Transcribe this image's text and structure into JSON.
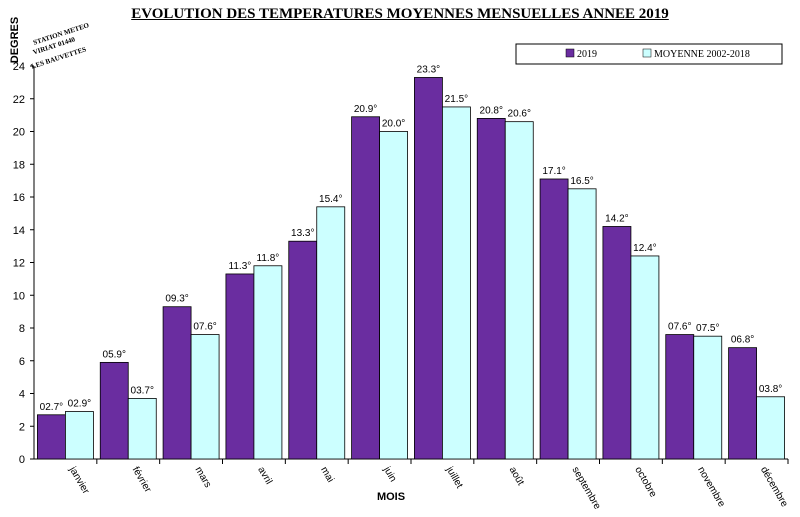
{
  "stamp": {
    "line1": "STATION METEO",
    "line2": "VIRIAT 01440",
    "line3": "LES BAUVETTES"
  },
  "chart_data": {
    "type": "bar",
    "title": "EVOLUTION DES TEMPERATURES MOYENNES MENSUELLES ANNEE 2019",
    "xlabel": "MOIS",
    "ylabel": "DEGRES",
    "ylim": [
      0,
      24
    ],
    "yticks": [
      0,
      2,
      4,
      6,
      8,
      10,
      12,
      14,
      16,
      18,
      20,
      22,
      24
    ],
    "grid": false,
    "legend_position": "top-right",
    "categories": [
      "janvier",
      "février",
      "mars",
      "avril",
      "mai",
      "juin",
      "juillet",
      "août",
      "septembre",
      "octobre",
      "novembre",
      "décembre"
    ],
    "series": [
      {
        "name": "2019",
        "color": "#6a2da0",
        "values": [
          2.7,
          5.9,
          9.3,
          11.3,
          13.3,
          20.9,
          23.3,
          20.8,
          17.1,
          14.2,
          7.6,
          6.8
        ],
        "labels": [
          "02.7°",
          "05.9°",
          "09.3°",
          "11.3°",
          "13.3°",
          "20.9°",
          "23.3°",
          "20.8°",
          "17.1°",
          "14.2°",
          "07.6°",
          "06.8°"
        ]
      },
      {
        "name": "MOYENNE 2002-2018",
        "color": "#ccffff",
        "values": [
          2.9,
          3.7,
          7.6,
          11.8,
          15.4,
          20.0,
          21.5,
          20.6,
          16.5,
          12.4,
          7.5,
          3.8
        ],
        "labels": [
          "02.9°",
          "03.7°",
          "07.6°",
          "11.8°",
          "15.4°",
          "20.0°",
          "21.5°",
          "20.6°",
          "16.5°",
          "12.4°",
          "07.5°",
          "03.8°"
        ]
      }
    ]
  }
}
